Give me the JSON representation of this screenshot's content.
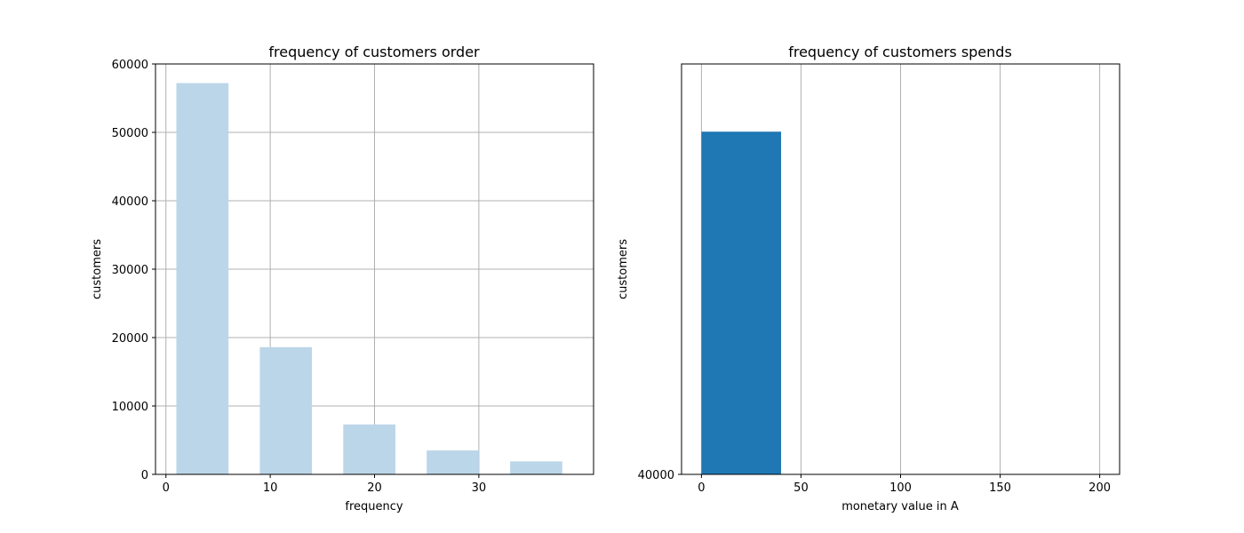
{
  "chart_data": [
    {
      "type": "bar",
      "title": "frequency of customers order",
      "xlabel": "frequency",
      "ylabel": "customers",
      "xlim": [
        -1,
        41
      ],
      "ylim": [
        0,
        60000
      ],
      "xticks": [
        0,
        10,
        20,
        30
      ],
      "yticks": [
        0,
        10000,
        20000,
        30000,
        40000,
        50000,
        60000
      ],
      "grid": true,
      "color": "#bcd6e9",
      "bars": [
        {
          "x0": 1,
          "x1": 6,
          "value": 57200
        },
        {
          "x0": 9,
          "x1": 14,
          "value": 18600
        },
        {
          "x0": 17,
          "x1": 22,
          "value": 7300
        },
        {
          "x0": 25,
          "x1": 30,
          "value": 3500
        },
        {
          "x0": 33,
          "x1": 38,
          "value": 1900
        }
      ]
    },
    {
      "type": "bar",
      "title": "frequency of customers spends",
      "xlabel": "monetary value in A",
      "ylabel": "customers",
      "xlim": [
        -10,
        210
      ],
      "ylim": [
        40000,
        60000
      ],
      "xticks": [
        0,
        50,
        100,
        150,
        200
      ],
      "yticks": [
        40000
      ],
      "grid": "x",
      "color": "#1f77b4",
      "bars": [
        {
          "x0": 0,
          "x1": 40,
          "value": 56700
        }
      ]
    }
  ]
}
